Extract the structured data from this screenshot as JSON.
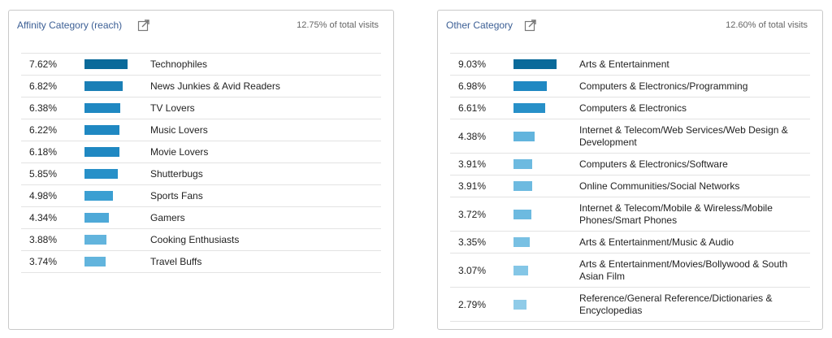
{
  "left": {
    "title": "Affinity Category (reach)",
    "subtitle": "12.75% of total visits",
    "rows": [
      {
        "pct": "7.62%",
        "value": 7.62,
        "color": "#0a6a9a",
        "label": "Technophiles"
      },
      {
        "pct": "6.82%",
        "value": 6.82,
        "color": "#1a7fb6",
        "label": "News Junkies & Avid Readers"
      },
      {
        "pct": "6.38%",
        "value": 6.38,
        "color": "#1f88c2",
        "label": "TV Lovers"
      },
      {
        "pct": "6.22%",
        "value": 6.22,
        "color": "#1f88c2",
        "label": "Music Lovers"
      },
      {
        "pct": "6.18%",
        "value": 6.18,
        "color": "#1f88c2",
        "label": "Movie Lovers"
      },
      {
        "pct": "5.85%",
        "value": 5.85,
        "color": "#2790c8",
        "label": "Shutterbugs"
      },
      {
        "pct": "4.98%",
        "value": 4.98,
        "color": "#3b9fd2",
        "label": "Sports Fans"
      },
      {
        "pct": "4.34%",
        "value": 4.34,
        "color": "#4ea9d8",
        "label": "Gamers"
      },
      {
        "pct": "3.88%",
        "value": 3.88,
        "color": "#62b4dd",
        "label": "Cooking Enthusiasts"
      },
      {
        "pct": "3.74%",
        "value": 3.74,
        "color": "#62b4dd",
        "label": "Travel Buffs"
      }
    ]
  },
  "right": {
    "title": "Other Category",
    "subtitle": "12.60% of total visits",
    "rows": [
      {
        "pct": "9.03%",
        "value": 9.03,
        "color": "#0a6a9a",
        "label": "Arts & Entertainment",
        "lines": 1
      },
      {
        "pct": "6.98%",
        "value": 6.98,
        "color": "#1f88c2",
        "label": "Computers & Electronics/Programming",
        "lines": 1
      },
      {
        "pct": "6.61%",
        "value": 6.61,
        "color": "#2790c8",
        "label": "Computers & Electronics",
        "lines": 1
      },
      {
        "pct": "4.38%",
        "value": 4.38,
        "color": "#62b4dd",
        "label": "Internet & Telecom/Web Services/Web Design & Development",
        "lines": 2
      },
      {
        "pct": "3.91%",
        "value": 3.91,
        "color": "#6dbae0",
        "label": "Computers & Electronics/Software",
        "lines": 1
      },
      {
        "pct": "3.91%",
        "value": 3.91,
        "color": "#6dbae0",
        "label": "Online Communities/Social Networks",
        "lines": 1
      },
      {
        "pct": "3.72%",
        "value": 3.72,
        "color": "#6dbae0",
        "label": "Internet & Telecom/Mobile & Wireless/Mobile Phones/Smart Phones",
        "lines": 2
      },
      {
        "pct": "3.35%",
        "value": 3.35,
        "color": "#78c0e3",
        "label": "Arts & Entertainment/Music & Audio",
        "lines": 1
      },
      {
        "pct": "3.07%",
        "value": 3.07,
        "color": "#84c6e6",
        "label": "Arts & Entertainment/Movies/Bollywood & South Asian Film",
        "lines": 2
      },
      {
        "pct": "2.79%",
        "value": 2.79,
        "color": "#8fcbe8",
        "label": "Reference/General Reference/Dictionaries & Encyclopedias",
        "lines": 2
      }
    ]
  }
}
